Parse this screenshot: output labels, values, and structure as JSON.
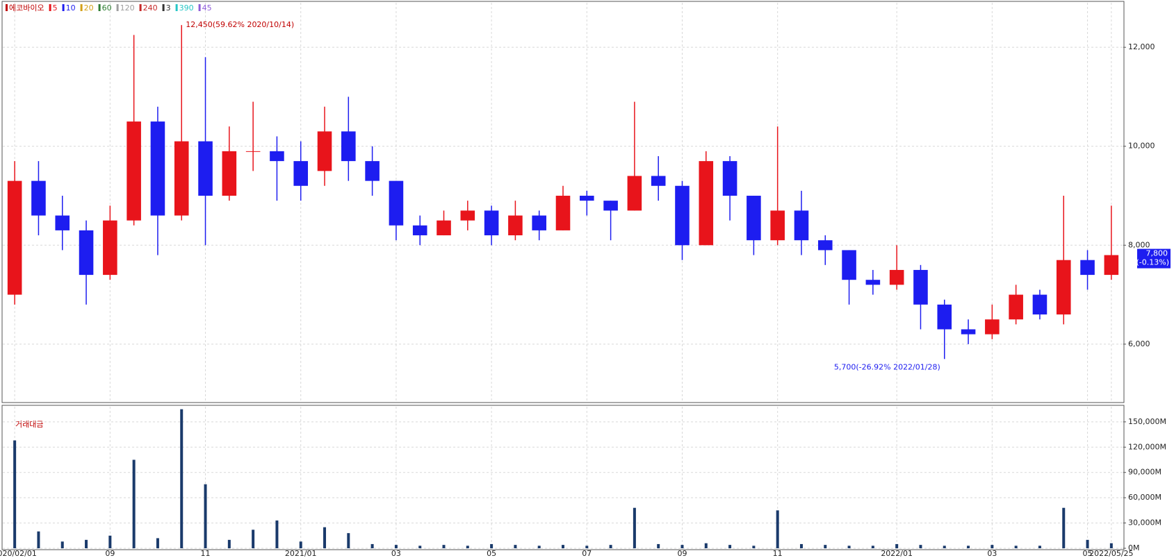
{
  "chart_data": [
    {
      "type": "candlestick",
      "legend": [
        {
          "name": "에코바이오",
          "color": "#c00000"
        },
        {
          "name": "5",
          "color": "#e8141b"
        },
        {
          "name": "10",
          "color": "#1d1df0"
        },
        {
          "name": "20",
          "color": "#d4a017"
        },
        {
          "name": "60",
          "color": "#2e7d32"
        },
        {
          "name": "120",
          "color": "#9e9e9e"
        },
        {
          "name": "240",
          "color": "#c62828"
        },
        {
          "name": "3",
          "color": "#333333"
        },
        {
          "name": "390",
          "color": "#26c6c6"
        },
        {
          "name": "45",
          "color": "#8e5cd9"
        }
      ],
      "up_color": "#e8141b",
      "down_color": "#1d1df0",
      "open": [
        7000,
        9300,
        8600,
        8300,
        7400,
        8500,
        10500,
        8600,
        10100,
        9000,
        9900,
        9900,
        9700,
        9500,
        10300,
        9700,
        9300,
        8400,
        8200,
        8500,
        8700,
        8200,
        8600,
        8300,
        9000,
        8900,
        8700,
        9400,
        9200,
        8000,
        9700,
        9000,
        8100,
        8700,
        8100,
        7900,
        7300,
        7200,
        7500,
        6800,
        6300,
        6200,
        6500,
        7000,
        6600,
        7700,
        7400
      ],
      "high": [
        9700,
        9700,
        9000,
        8500,
        8800,
        12250,
        10800,
        12450,
        11800,
        10400,
        10900,
        10200,
        10100,
        10800,
        11000,
        10000,
        9300,
        8600,
        8700,
        8900,
        8800,
        8900,
        8700,
        9200,
        9100,
        8900,
        10900,
        9800,
        9300,
        9900,
        9800,
        9000,
        10400,
        9100,
        8200,
        7900,
        7500,
        8000,
        7600,
        6900,
        6500,
        6800,
        7200,
        7100,
        9000,
        7900,
        8800
      ],
      "low": [
        6800,
        8200,
        7900,
        6800,
        7300,
        8400,
        7800,
        8500,
        8000,
        8900,
        9500,
        8900,
        8900,
        9200,
        9300,
        9000,
        8100,
        8000,
        8200,
        8300,
        8000,
        8100,
        8100,
        8300,
        8600,
        8100,
        8700,
        8900,
        7700,
        8000,
        8500,
        7800,
        8000,
        7800,
        7600,
        6800,
        7000,
        7100,
        6300,
        5700,
        6000,
        6100,
        6400,
        6500,
        6400,
        7100,
        7300
      ],
      "close": [
        9300,
        8600,
        8300,
        7400,
        8500,
        10500,
        8600,
        10100,
        9000,
        9900,
        9900,
        9700,
        9200,
        10300,
        9700,
        9300,
        8400,
        8200,
        8500,
        8700,
        8200,
        8600,
        8300,
        9000,
        8900,
        8700,
        9400,
        9200,
        8000,
        9700,
        9000,
        8100,
        8700,
        8100,
        7900,
        7300,
        7200,
        7500,
        6800,
        6300,
        6200,
        6500,
        7000,
        6600,
        7700,
        7400,
        7800
      ],
      "annotations": [
        "12,450(59.62% 2020/10/14)",
        "5,700(-26.92% 2022/01/28)"
      ],
      "current_price": 7800,
      "current_price_label": "7,800",
      "current_change": "(-0.13%)",
      "ylim": [
        4820,
        12900
      ],
      "yticks": [
        {
          "value": 6000,
          "label": "6,000"
        },
        {
          "value": 8000,
          "label": "8,000"
        },
        {
          "value": 10000,
          "label": "10,000"
        },
        {
          "value": 12000,
          "label": "12,000"
        }
      ],
      "grid": true
    },
    {
      "type": "bar",
      "title": "거래대금",
      "color": "#1a3a6b",
      "categories": [
        "2020/02/01",
        null,
        null,
        null,
        "09",
        null,
        null,
        null,
        "11",
        null,
        null,
        null,
        "2021/01",
        null,
        null,
        null,
        "03",
        null,
        null,
        null,
        "05",
        null,
        null,
        null,
        "07",
        null,
        null,
        null,
        "09",
        null,
        null,
        null,
        "11",
        null,
        null,
        null,
        null,
        "2022/01",
        null,
        null,
        null,
        "03",
        null,
        null,
        null,
        "05",
        "2022/05/25"
      ],
      "values": [
        128000,
        20000,
        8000,
        10000,
        15000,
        105000,
        12000,
        165000,
        76000,
        10000,
        22000,
        33000,
        8000,
        25000,
        18000,
        5000,
        4000,
        3000,
        4000,
        3000,
        5000,
        4000,
        3000,
        4000,
        3000,
        4000,
        48000,
        5000,
        4000,
        6000,
        4000,
        3000,
        45000,
        5000,
        4000,
        3000,
        3000,
        5000,
        4000,
        3000,
        3000,
        4000,
        3000,
        3000,
        48000,
        10000,
        6000
      ],
      "ylim": [
        0,
        168000
      ],
      "yticks": [
        {
          "value": 0,
          "label": "0M"
        },
        {
          "value": 30000,
          "label": "30,000M"
        },
        {
          "value": 60000,
          "label": "60,000M"
        },
        {
          "value": 90000,
          "label": "90,000M"
        },
        {
          "value": 120000,
          "label": "120,000M"
        },
        {
          "value": 150000,
          "label": "150,000M"
        }
      ],
      "grid": true
    }
  ]
}
